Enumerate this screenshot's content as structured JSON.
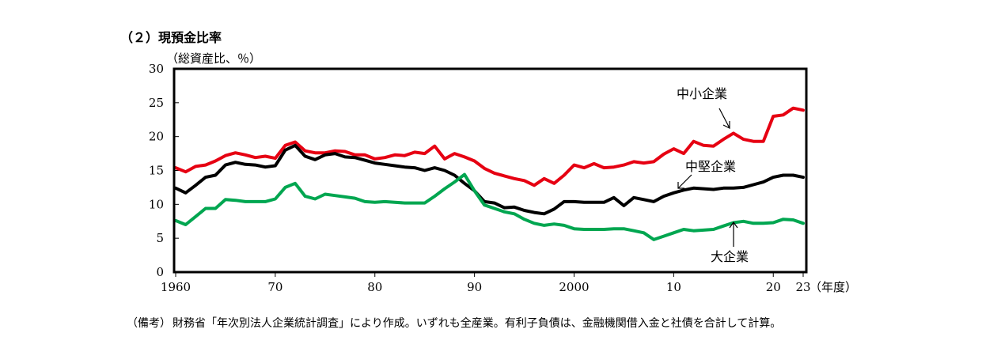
{
  "chart_data": {
    "type": "line",
    "title": "（２）現預金比率",
    "ylabel": "（総資産比、％）",
    "xlabel": "（年度）",
    "xlim": [
      1960,
      2023
    ],
    "ylim": [
      0,
      30
    ],
    "yticks": [
      0,
      5,
      10,
      15,
      20,
      25,
      30
    ],
    "xticks": [
      {
        "value": 1960,
        "label": "1960"
      },
      {
        "value": 1970,
        "label": "70"
      },
      {
        "value": 1980,
        "label": "80"
      },
      {
        "value": 1990,
        "label": "90"
      },
      {
        "value": 2000,
        "label": "2000"
      },
      {
        "value": 2010,
        "label": "10"
      },
      {
        "value": 2020,
        "label": "20"
      },
      {
        "value": 2023,
        "label": "23"
      }
    ],
    "x": [
      1960,
      1961,
      1962,
      1963,
      1964,
      1965,
      1966,
      1967,
      1968,
      1969,
      1970,
      1971,
      1972,
      1973,
      1974,
      1975,
      1976,
      1977,
      1978,
      1979,
      1980,
      1981,
      1982,
      1983,
      1984,
      1985,
      1986,
      1987,
      1988,
      1989,
      1990,
      1991,
      1992,
      1993,
      1994,
      1995,
      1996,
      1997,
      1998,
      1999,
      2000,
      2001,
      2002,
      2003,
      2004,
      2005,
      2006,
      2007,
      2008,
      2009,
      2010,
      2011,
      2012,
      2013,
      2014,
      2015,
      2016,
      2017,
      2018,
      2019,
      2020,
      2021,
      2022,
      2023
    ],
    "series": [
      {
        "name": "中小企業",
        "color": "#e60012",
        "values": [
          15.4,
          14.8,
          15.6,
          15.8,
          16.4,
          17.2,
          17.6,
          17.3,
          16.9,
          17.1,
          16.8,
          18.7,
          19.2,
          17.9,
          17.6,
          17.6,
          17.9,
          17.8,
          17.3,
          17.3,
          16.7,
          16.9,
          17.3,
          17.2,
          17.7,
          17.5,
          18.6,
          16.7,
          17.5,
          17.0,
          16.4,
          15.3,
          14.6,
          14.2,
          13.8,
          13.5,
          12.8,
          13.8,
          13.1,
          14.3,
          15.8,
          15.4,
          16.0,
          15.4,
          15.5,
          15.8,
          16.3,
          16.1,
          16.3,
          17.4,
          18.2,
          17.5,
          19.3,
          18.7,
          18.6,
          19.6,
          20.5,
          19.6,
          19.3,
          19.3,
          23.0,
          23.2,
          24.2,
          23.9
        ]
      },
      {
        "name": "中堅企業",
        "color": "#000000",
        "values": [
          12.4,
          11.7,
          12.8,
          14.0,
          14.3,
          15.8,
          16.2,
          15.9,
          15.8,
          15.5,
          15.7,
          18.0,
          18.7,
          17.1,
          16.6,
          17.3,
          17.5,
          17.0,
          16.9,
          16.5,
          16.1,
          15.9,
          15.7,
          15.5,
          15.4,
          15.0,
          15.4,
          15.0,
          14.3,
          13.1,
          12.0,
          10.4,
          10.2,
          9.5,
          9.6,
          9.1,
          8.8,
          8.6,
          9.3,
          10.4,
          10.4,
          10.3,
          10.3,
          10.3,
          11.0,
          9.8,
          11.0,
          10.7,
          10.4,
          11.2,
          11.7,
          12.1,
          12.4,
          12.3,
          12.2,
          12.4,
          12.4,
          12.5,
          12.9,
          13.3,
          14.0,
          14.3,
          14.3,
          14.0
        ]
      },
      {
        "name": "大企業",
        "color": "#00a650",
        "values": [
          7.6,
          7.0,
          8.2,
          9.4,
          9.4,
          10.7,
          10.6,
          10.4,
          10.4,
          10.4,
          10.8,
          12.5,
          13.1,
          11.2,
          10.8,
          11.5,
          11.3,
          11.1,
          10.9,
          10.4,
          10.3,
          10.4,
          10.3,
          10.2,
          10.2,
          10.2,
          11.2,
          12.3,
          13.3,
          14.4,
          12.0,
          9.9,
          9.4,
          8.9,
          8.6,
          7.8,
          7.2,
          6.9,
          7.1,
          6.9,
          6.4,
          6.3,
          6.3,
          6.3,
          6.4,
          6.4,
          6.1,
          5.8,
          4.8,
          5.3,
          5.8,
          6.3,
          6.1,
          6.2,
          6.3,
          6.8,
          7.3,
          7.5,
          7.2,
          7.2,
          7.3,
          7.8,
          7.7,
          7.2
        ]
      }
    ],
    "annotations": [
      "中小企業",
      "中堅企業",
      "大企業"
    ]
  },
  "note": {
    "prefix": "（備考）",
    "text": "財務省「年次別法人企業統計調査」により作成。いずれも全産業。有利子負債は、金融機関借入金と社債を合計して計算。"
  }
}
